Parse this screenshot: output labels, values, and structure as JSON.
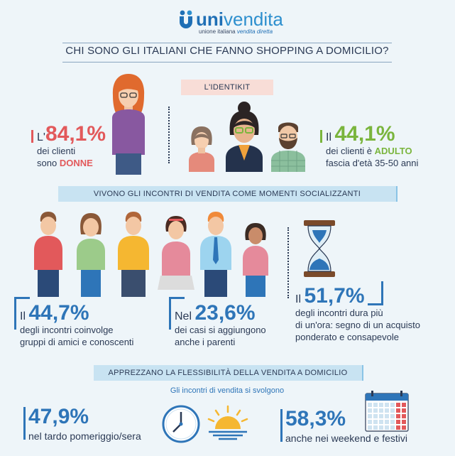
{
  "logo": {
    "uni": "uni",
    "vendita": "vendita",
    "sub_plain": "unione italiana ",
    "sub_italic": "vendita diretta"
  },
  "title": "CHI SONO GLI ITALIANI CHE FANNO SHOPPING A DOMICILIO?",
  "identikit": {
    "label": "L'IDENTIKIT",
    "women": {
      "prefix": "L'",
      "pct": "84,1%",
      "line1": "dei clienti",
      "line2_plain": "sono ",
      "line2_em": "DONNE"
    },
    "adult": {
      "prefix": "Il ",
      "pct": "44,1%",
      "line1_plain": "dei clienti è ",
      "line1_em": "ADULTO",
      "line2": "fascia d'età 35-50 anni"
    }
  },
  "social": {
    "label": "VIVONO GLI INCONTRI DI VENDITA COME MOMENTI SOCIALIZZANTI",
    "friends": {
      "prefix": "Il ",
      "pct": "44,7%",
      "line1": "degli incontri coinvolge",
      "line2": "gruppi di amici e conoscenti"
    },
    "relatives": {
      "prefix": "Nel ",
      "pct": "23,6%",
      "line1": "dei casi si aggiungono",
      "line2": "anche i parenti"
    },
    "duration": {
      "prefix": "Il ",
      "pct": "51,7%",
      "line1": "degli incontri dura più",
      "line2": "di un'ora: segno di un acquisto",
      "line3": "ponderato e consapevole"
    }
  },
  "flex": {
    "label": "APPREZZANO LA FLESSIBILITÀ DELLA VENDITA A DOMICILIO",
    "subtitle": "Gli incontri di vendita si svolgono",
    "evening": {
      "pct": "47,9%",
      "text": "nel tardo pomeriggio/sera"
    },
    "weekend": {
      "pct": "58,3%",
      "text": "anche nei weekend e festivi"
    }
  },
  "colors": {
    "red": "#e2595b",
    "green": "#7ab53d",
    "blue": "#2e75b8",
    "navy": "#2b3a55"
  },
  "icons": [
    "woman-icon",
    "girl-icon",
    "woman-glasses-icon",
    "man-beard-icon",
    "people-group-icon",
    "hourglass-icon",
    "clock-icon",
    "sunset-icon",
    "calendar-icon"
  ]
}
